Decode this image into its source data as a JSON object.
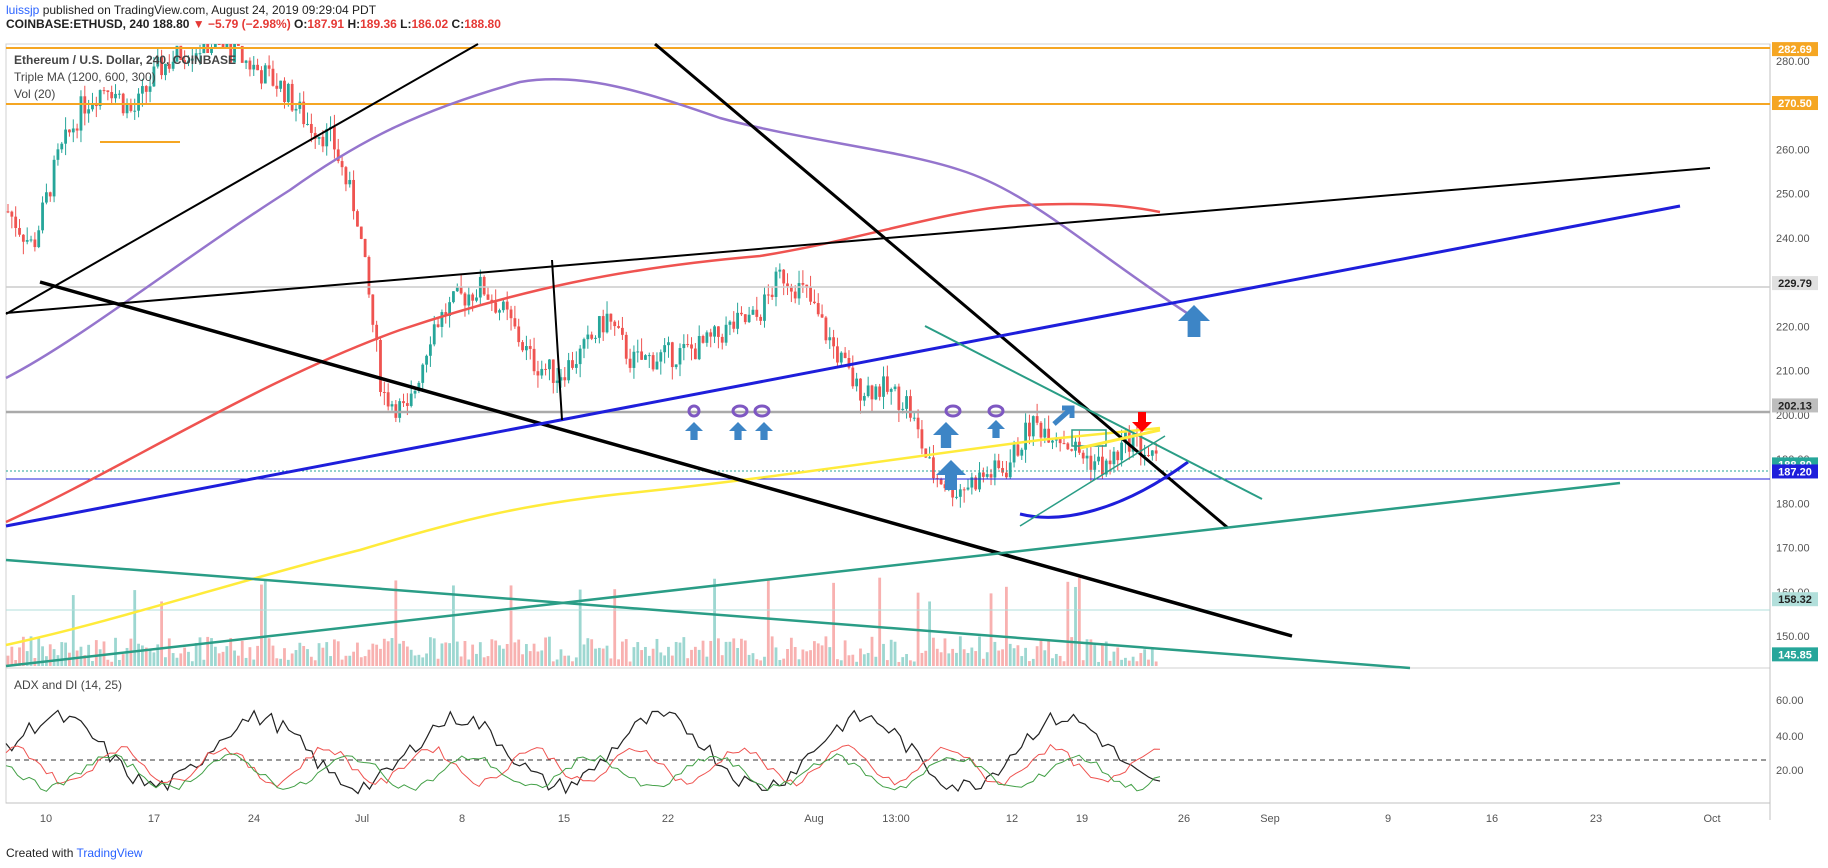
{
  "header": {
    "user": "luissjp",
    "published": "published on TradingView.com, August 24, 2019 09:29:04 PDT",
    "symbol": "COINBASE:ETHUSD, 240",
    "last": "188.80",
    "change": "▼ −5.79 (−2.98%)",
    "open_label": "O:",
    "open": "187.91",
    "high_label": "H:",
    "high": "189.36",
    "low_label": "L:",
    "low": "186.02",
    "close_label": "C:",
    "close": "188.80"
  },
  "legend": {
    "title": "Ethereum / U.S. Dollar, 240, COINBASE",
    "ma": "Triple MA (1200, 600, 300)",
    "vol": "Vol (20)",
    "adx": "ADX and DI (14, 25)"
  },
  "footer": {
    "created": "Created with",
    "brand": "TradingView"
  },
  "colors": {
    "up": "#26a69a",
    "down": "#ef5350",
    "ma_red": "#ef5350",
    "ma_purple": "#9575cd",
    "ma_yellow": "#ffeb3b",
    "trend_blue": "#1e1edb",
    "trend_green": "#2a9d86",
    "level_orange": "#f5a623",
    "arrow_blue": "#3d85c6",
    "arrow_red": "#ff0000"
  },
  "chart_data": [
    {
      "type": "line",
      "title": "Ethereum / U.S. Dollar, 240, COINBASE",
      "x_ticks": [
        "10",
        "17",
        "24",
        "Jul",
        "8",
        "15",
        "22",
        "Aug",
        "13:00",
        "12",
        "19",
        "26",
        "Sep",
        "9",
        "16",
        "23",
        "Oct"
      ],
      "y_ticks": [
        "280.00",
        "270.00",
        "260.00",
        "250.00",
        "240.00",
        "230.00",
        "220.00",
        "210.00",
        "200.00",
        "190.00",
        "180.00",
        "170.00",
        "160.00",
        "150.00"
      ],
      "ylim": [
        145,
        284
      ],
      "price_tags": [
        {
          "value": 282.69,
          "label": "282.69",
          "color": "#f5a623"
        },
        {
          "value": 270.5,
          "label": "270.50",
          "color": "#f5a623"
        },
        {
          "value": 229.79,
          "label": "229.79",
          "color": "#e0e0e0"
        },
        {
          "value": 202.13,
          "label": "202.13",
          "color": "#bdbdbd"
        },
        {
          "value": 188.8,
          "label": "188.80",
          "color": "#26a69a"
        },
        {
          "value": 187.2,
          "label": "187.20",
          "color": "#1e1edb"
        },
        {
          "value": 158.32,
          "label": "158.32",
          "color": "#b2dfdb"
        },
        {
          "value": 145.85,
          "label": "145.85",
          "color": "#26a69a"
        }
      ],
      "series": [
        {
          "name": "Ethereum / U.S. Dollar",
          "values": [
            246,
            238,
            258,
            270,
            275,
            268,
            278,
            282,
            284,
            282,
            278,
            274,
            266,
            262,
            245,
            205,
            200,
            220,
            226,
            229,
            222,
            212,
            209,
            214,
            222,
            212,
            213,
            214,
            216,
            220,
            222,
            232,
            227,
            216,
            206,
            206,
            203,
            187,
            183,
            186,
            188,
            198,
            196,
            191,
            188,
            195,
            189
          ]
        },
        {
          "name": "Triple MA (1200, 600, 300)",
          "values": [
            210,
            216,
            225,
            236,
            254,
            268,
            276,
            278,
            274,
            270,
            262,
            256,
            252,
            245,
            238,
            229,
            224
          ]
        }
      ]
    },
    {
      "type": "line",
      "title": "ADX and DI (14, 25)",
      "y_ticks": [
        "60.00",
        "40.00",
        "20.00"
      ],
      "ylim": [
        0,
        70
      ],
      "reference_line": 25
    }
  ]
}
